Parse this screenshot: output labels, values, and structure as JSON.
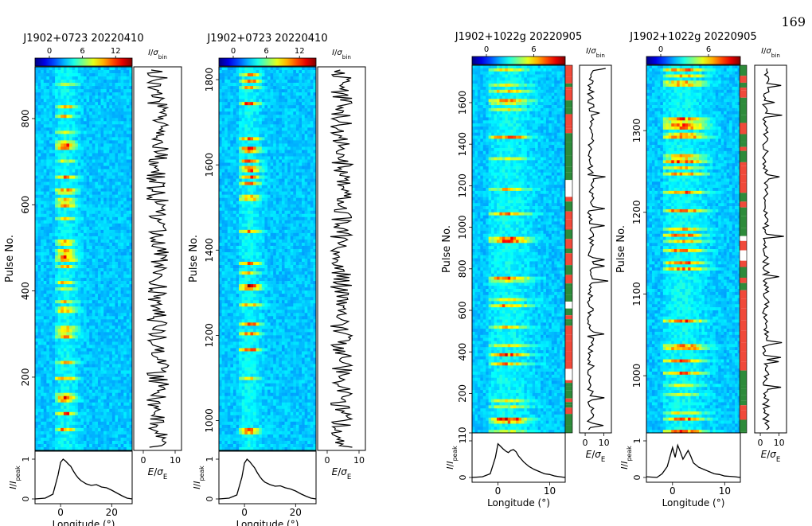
{
  "page_number": "169",
  "colors": {
    "heatmap_low": "#1f4fd8",
    "heatmap_high": "#ff3b1f",
    "drift_red": "#f04a3a",
    "drift_green": "#2e8b3a",
    "trace": "#000000"
  },
  "chart_data": [
    {
      "type": "heatmap",
      "title": "J1902+0723  20220410",
      "colorbar_ticks": [
        "0",
        "6",
        "12"
      ],
      "colorbar_label": "I/σbin",
      "ylabel": "Pulse No.",
      "ylim": [
        30,
        920
      ],
      "yticks": [
        200,
        400,
        600,
        800
      ],
      "xlabel": "Longitude (°)",
      "xlim": [
        -10,
        28
      ],
      "xticks": [
        0,
        20
      ],
      "energy_xlabel": "E/σE",
      "energy_xticks": [
        0,
        10
      ],
      "energy_xlim": [
        -3,
        12
      ],
      "profile_ylabel": "I/Ipeak",
      "profile_yticks": [
        0,
        1
      ],
      "profile": {
        "x": [
          -10,
          -6,
          -3,
          -1,
          0,
          1,
          2,
          3,
          4,
          5,
          6,
          7,
          8,
          10,
          12,
          14,
          16,
          18,
          20,
          22,
          24,
          26,
          28
        ],
        "y": [
          0.0,
          0.02,
          0.12,
          0.6,
          0.92,
          1.0,
          0.95,
          0.88,
          0.82,
          0.7,
          0.6,
          0.52,
          0.46,
          0.38,
          0.34,
          0.36,
          0.3,
          0.28,
          0.22,
          0.15,
          0.08,
          0.02,
          0.0
        ]
      },
      "has_drift_bar": false
    },
    {
      "type": "heatmap",
      "title": "J1902+0723  20220410",
      "colorbar_ticks": [
        "0",
        "6",
        "12"
      ],
      "colorbar_label": "I/σbin",
      "ylabel": "Pulse No.",
      "ylim": [
        930,
        1830
      ],
      "yticks": [
        1000,
        1200,
        1400,
        1600,
        1800
      ],
      "xlabel": "Longitude (°)",
      "xlim": [
        -10,
        28
      ],
      "xticks": [
        0,
        20
      ],
      "energy_xlabel": "E/σE",
      "energy_xticks": [
        0,
        10
      ],
      "energy_xlim": [
        -3,
        12
      ],
      "profile_ylabel": "I/Ipeak",
      "profile_yticks": [
        0,
        1
      ],
      "profile": {
        "x": [
          -10,
          -6,
          -3,
          -1,
          0,
          1,
          2,
          3,
          4,
          5,
          6,
          7,
          8,
          10,
          12,
          14,
          16,
          18,
          20,
          22,
          24,
          26,
          28
        ],
        "y": [
          0.0,
          0.02,
          0.1,
          0.55,
          0.9,
          1.0,
          0.94,
          0.86,
          0.78,
          0.66,
          0.56,
          0.48,
          0.42,
          0.36,
          0.32,
          0.33,
          0.28,
          0.25,
          0.2,
          0.13,
          0.07,
          0.02,
          0.0
        ]
      },
      "has_drift_bar": false
    },
    {
      "type": "heatmap",
      "title": "J1902+1022g  20220905",
      "colorbar_ticks": [
        "0",
        "6"
      ],
      "colorbar_label": "I/σbin",
      "ylabel": "Pulse No.",
      "ylim": [
        10,
        1780
      ],
      "yticks": [
        10,
        200,
        400,
        600,
        800,
        1000,
        1200,
        1400,
        1600
      ],
      "xlabel": "Longitude (°)",
      "xlim": [
        -5,
        13
      ],
      "xticks": [
        0,
        10
      ],
      "energy_xlabel": "E/σE",
      "energy_xticks": [
        0,
        10
      ],
      "energy_xlim": [
        -3,
        14
      ],
      "profile_ylabel": "I/Ipeak",
      "profile_yticks": [
        0,
        1
      ],
      "profile": {
        "x": [
          -5,
          -3,
          -1.5,
          -0.5,
          0,
          0.5,
          1,
          1.5,
          2,
          2.5,
          3,
          3.5,
          4,
          5,
          6,
          7,
          8,
          9,
          10,
          11,
          12,
          13
        ],
        "y": [
          0.0,
          0.02,
          0.1,
          0.55,
          0.92,
          0.85,
          0.78,
          0.72,
          0.68,
          0.74,
          0.76,
          0.7,
          0.58,
          0.42,
          0.3,
          0.22,
          0.16,
          0.1,
          0.08,
          0.04,
          0.02,
          0.0
        ]
      },
      "has_drift_bar": true
    },
    {
      "type": "heatmap",
      "title": "J1902+1022g  20220905",
      "colorbar_ticks": [
        "0",
        "6"
      ],
      "colorbar_label": "I/σbin",
      "ylabel": "Pulse No.",
      "ylim": [
        930,
        1380
      ],
      "yticks": [
        1000,
        1100,
        1200,
        1300
      ],
      "xlabel": "Longitude (°)",
      "xlim": [
        -5,
        13
      ],
      "xticks": [
        0,
        10
      ],
      "energy_xlabel": "E/σE",
      "energy_xticks": [
        0,
        10
      ],
      "energy_xlim": [
        -3,
        14
      ],
      "profile_ylabel": "I/Ipeak",
      "profile_yticks": [
        0,
        1
      ],
      "profile": {
        "x": [
          -5,
          -3,
          -2,
          -1,
          0,
          0.5,
          1,
          1.5,
          2,
          2.5,
          3,
          3.5,
          4,
          5,
          6,
          7,
          8,
          9,
          10,
          11,
          12,
          13
        ],
        "y": [
          0.02,
          0.0,
          0.1,
          0.3,
          0.82,
          0.55,
          0.88,
          0.7,
          0.5,
          0.62,
          0.74,
          0.58,
          0.4,
          0.28,
          0.22,
          0.16,
          0.1,
          0.08,
          0.04,
          0.03,
          0.02,
          0.0
        ]
      },
      "has_drift_bar": true
    }
  ]
}
